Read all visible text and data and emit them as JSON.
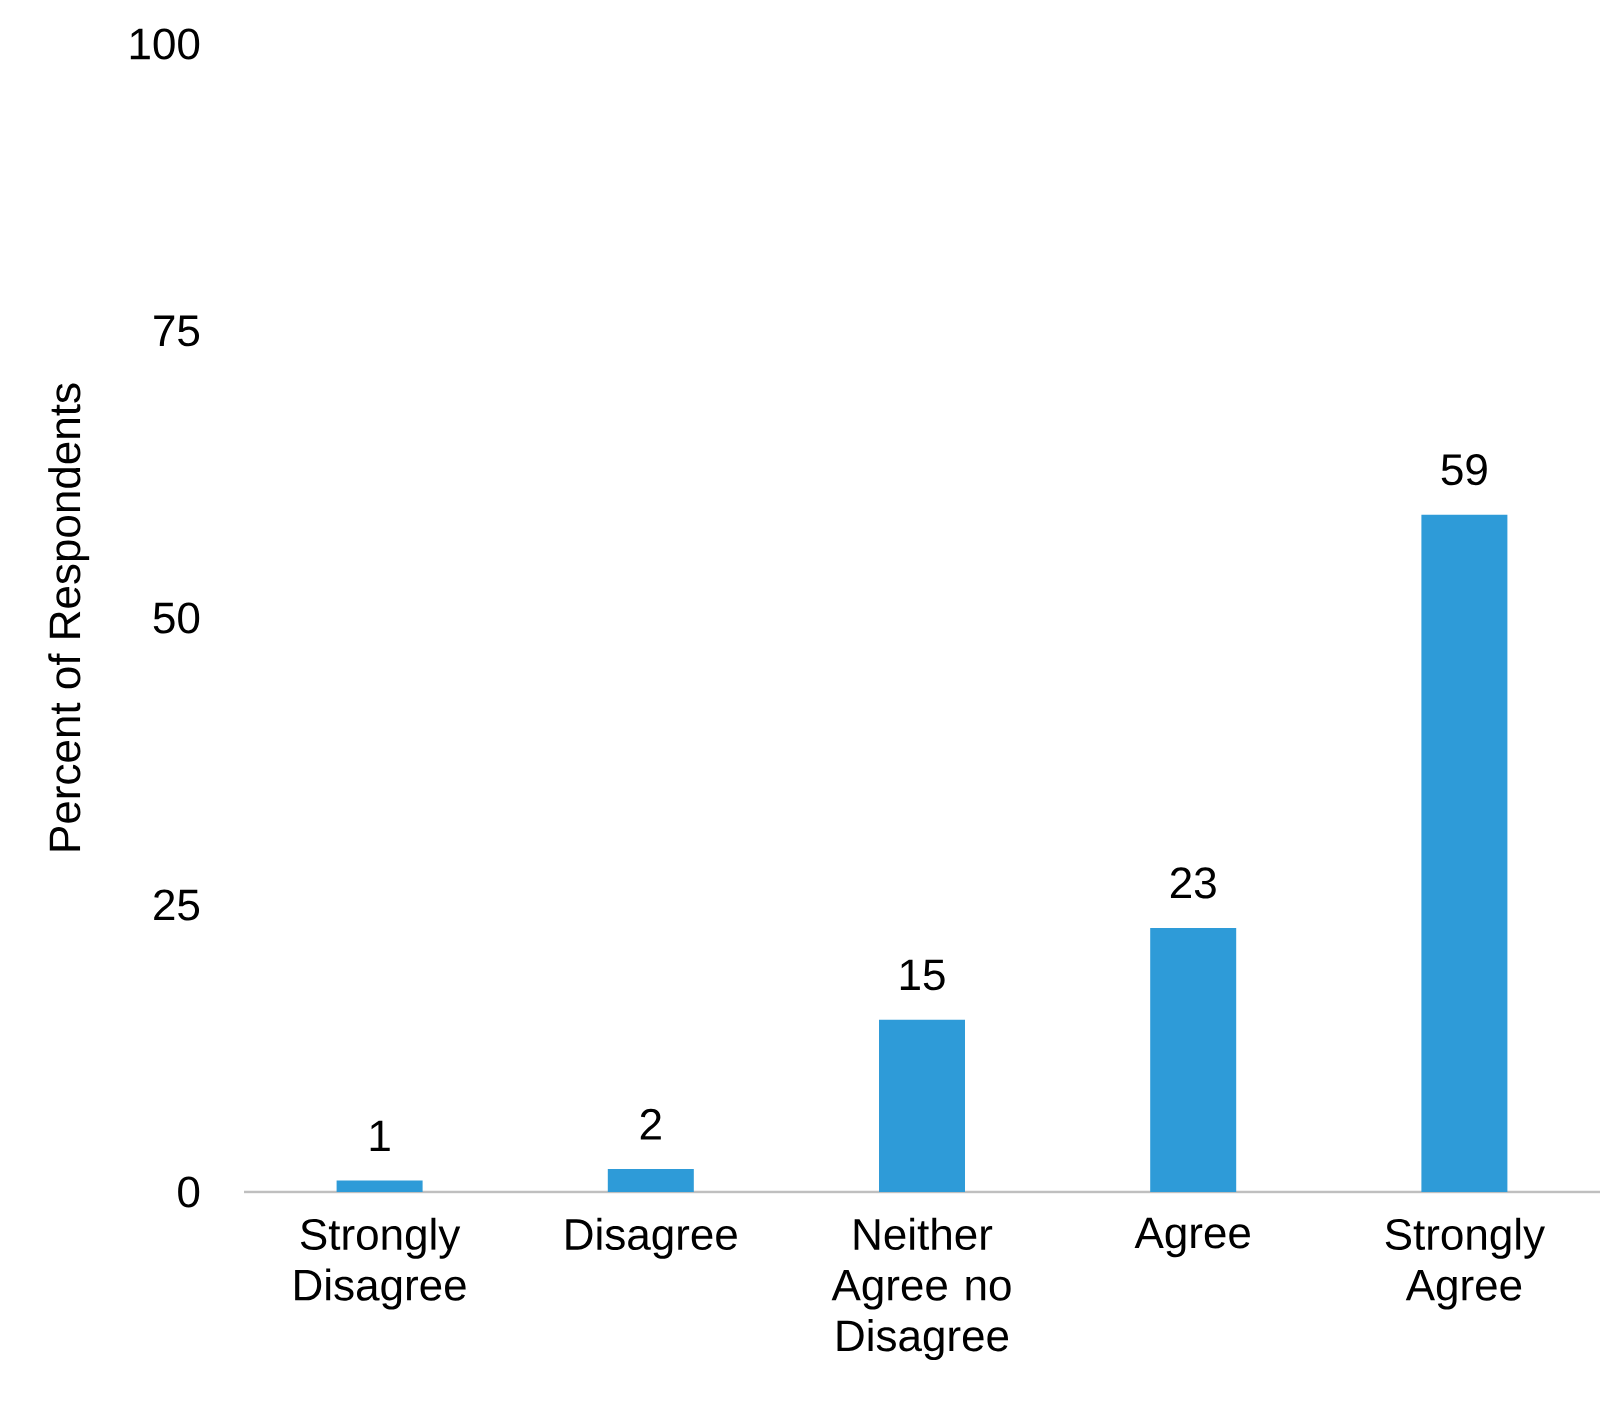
{
  "chart_data": {
    "type": "bar",
    "ylabel": "Percent of Respondents",
    "categories": [
      "Strongly Disagree",
      "Disagree",
      "Neither Agree no Disagree",
      "Agree",
      "Strongly Agree"
    ],
    "values": [
      1,
      2,
      15,
      23,
      59
    ],
    "color": "#2e9bd8",
    "ylim": [
      0,
      100
    ],
    "yticks": [
      0,
      25,
      50,
      75,
      100
    ],
    "data_labels": true
  }
}
